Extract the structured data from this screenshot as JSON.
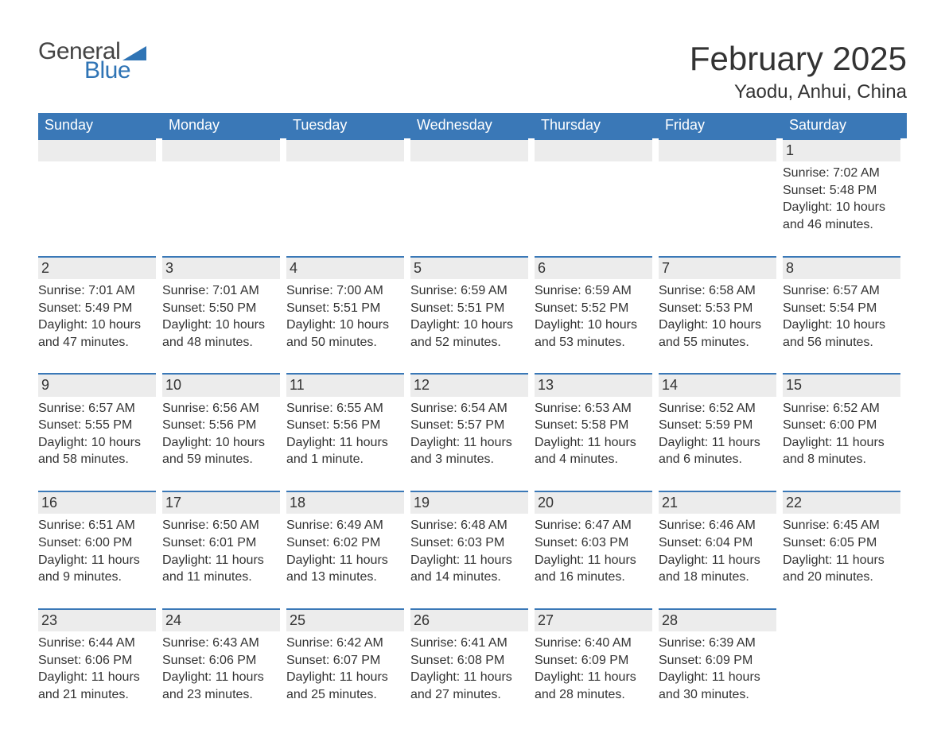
{
  "logo": {
    "general": "General",
    "blue": "Blue"
  },
  "title": "February 2025",
  "location": "Yaodu, Anhui, China",
  "colors": {
    "header_bg": "#3a78b7",
    "header_text": "#ffffff",
    "daybar_bg": "#ececec",
    "daybar_border": "#3a78b7",
    "text": "#333333",
    "logo_blue": "#2f74b5",
    "logo_gray": "#444444",
    "background": "#ffffff"
  },
  "weekdays": [
    "Sunday",
    "Monday",
    "Tuesday",
    "Wednesday",
    "Thursday",
    "Friday",
    "Saturday"
  ],
  "weeks": [
    [
      null,
      null,
      null,
      null,
      null,
      null,
      {
        "n": "1",
        "sr": "Sunrise: 7:02 AM",
        "ss": "Sunset: 5:48 PM",
        "d1": "Daylight: 10 hours",
        "d2": "and 46 minutes."
      }
    ],
    [
      {
        "n": "2",
        "sr": "Sunrise: 7:01 AM",
        "ss": "Sunset: 5:49 PM",
        "d1": "Daylight: 10 hours",
        "d2": "and 47 minutes."
      },
      {
        "n": "3",
        "sr": "Sunrise: 7:01 AM",
        "ss": "Sunset: 5:50 PM",
        "d1": "Daylight: 10 hours",
        "d2": "and 48 minutes."
      },
      {
        "n": "4",
        "sr": "Sunrise: 7:00 AM",
        "ss": "Sunset: 5:51 PM",
        "d1": "Daylight: 10 hours",
        "d2": "and 50 minutes."
      },
      {
        "n": "5",
        "sr": "Sunrise: 6:59 AM",
        "ss": "Sunset: 5:51 PM",
        "d1": "Daylight: 10 hours",
        "d2": "and 52 minutes."
      },
      {
        "n": "6",
        "sr": "Sunrise: 6:59 AM",
        "ss": "Sunset: 5:52 PM",
        "d1": "Daylight: 10 hours",
        "d2": "and 53 minutes."
      },
      {
        "n": "7",
        "sr": "Sunrise: 6:58 AM",
        "ss": "Sunset: 5:53 PM",
        "d1": "Daylight: 10 hours",
        "d2": "and 55 minutes."
      },
      {
        "n": "8",
        "sr": "Sunrise: 6:57 AM",
        "ss": "Sunset: 5:54 PM",
        "d1": "Daylight: 10 hours",
        "d2": "and 56 minutes."
      }
    ],
    [
      {
        "n": "9",
        "sr": "Sunrise: 6:57 AM",
        "ss": "Sunset: 5:55 PM",
        "d1": "Daylight: 10 hours",
        "d2": "and 58 minutes."
      },
      {
        "n": "10",
        "sr": "Sunrise: 6:56 AM",
        "ss": "Sunset: 5:56 PM",
        "d1": "Daylight: 10 hours",
        "d2": "and 59 minutes."
      },
      {
        "n": "11",
        "sr": "Sunrise: 6:55 AM",
        "ss": "Sunset: 5:56 PM",
        "d1": "Daylight: 11 hours",
        "d2": "and 1 minute."
      },
      {
        "n": "12",
        "sr": "Sunrise: 6:54 AM",
        "ss": "Sunset: 5:57 PM",
        "d1": "Daylight: 11 hours",
        "d2": "and 3 minutes."
      },
      {
        "n": "13",
        "sr": "Sunrise: 6:53 AM",
        "ss": "Sunset: 5:58 PM",
        "d1": "Daylight: 11 hours",
        "d2": "and 4 minutes."
      },
      {
        "n": "14",
        "sr": "Sunrise: 6:52 AM",
        "ss": "Sunset: 5:59 PM",
        "d1": "Daylight: 11 hours",
        "d2": "and 6 minutes."
      },
      {
        "n": "15",
        "sr": "Sunrise: 6:52 AM",
        "ss": "Sunset: 6:00 PM",
        "d1": "Daylight: 11 hours",
        "d2": "and 8 minutes."
      }
    ],
    [
      {
        "n": "16",
        "sr": "Sunrise: 6:51 AM",
        "ss": "Sunset: 6:00 PM",
        "d1": "Daylight: 11 hours",
        "d2": "and 9 minutes."
      },
      {
        "n": "17",
        "sr": "Sunrise: 6:50 AM",
        "ss": "Sunset: 6:01 PM",
        "d1": "Daylight: 11 hours",
        "d2": "and 11 minutes."
      },
      {
        "n": "18",
        "sr": "Sunrise: 6:49 AM",
        "ss": "Sunset: 6:02 PM",
        "d1": "Daylight: 11 hours",
        "d2": "and 13 minutes."
      },
      {
        "n": "19",
        "sr": "Sunrise: 6:48 AM",
        "ss": "Sunset: 6:03 PM",
        "d1": "Daylight: 11 hours",
        "d2": "and 14 minutes."
      },
      {
        "n": "20",
        "sr": "Sunrise: 6:47 AM",
        "ss": "Sunset: 6:03 PM",
        "d1": "Daylight: 11 hours",
        "d2": "and 16 minutes."
      },
      {
        "n": "21",
        "sr": "Sunrise: 6:46 AM",
        "ss": "Sunset: 6:04 PM",
        "d1": "Daylight: 11 hours",
        "d2": "and 18 minutes."
      },
      {
        "n": "22",
        "sr": "Sunrise: 6:45 AM",
        "ss": "Sunset: 6:05 PM",
        "d1": "Daylight: 11 hours",
        "d2": "and 20 minutes."
      }
    ],
    [
      {
        "n": "23",
        "sr": "Sunrise: 6:44 AM",
        "ss": "Sunset: 6:06 PM",
        "d1": "Daylight: 11 hours",
        "d2": "and 21 minutes."
      },
      {
        "n": "24",
        "sr": "Sunrise: 6:43 AM",
        "ss": "Sunset: 6:06 PM",
        "d1": "Daylight: 11 hours",
        "d2": "and 23 minutes."
      },
      {
        "n": "25",
        "sr": "Sunrise: 6:42 AM",
        "ss": "Sunset: 6:07 PM",
        "d1": "Daylight: 11 hours",
        "d2": "and 25 minutes."
      },
      {
        "n": "26",
        "sr": "Sunrise: 6:41 AM",
        "ss": "Sunset: 6:08 PM",
        "d1": "Daylight: 11 hours",
        "d2": "and 27 minutes."
      },
      {
        "n": "27",
        "sr": "Sunrise: 6:40 AM",
        "ss": "Sunset: 6:09 PM",
        "d1": "Daylight: 11 hours",
        "d2": "and 28 minutes."
      },
      {
        "n": "28",
        "sr": "Sunrise: 6:39 AM",
        "ss": "Sunset: 6:09 PM",
        "d1": "Daylight: 11 hours",
        "d2": "and 30 minutes."
      },
      null
    ]
  ]
}
